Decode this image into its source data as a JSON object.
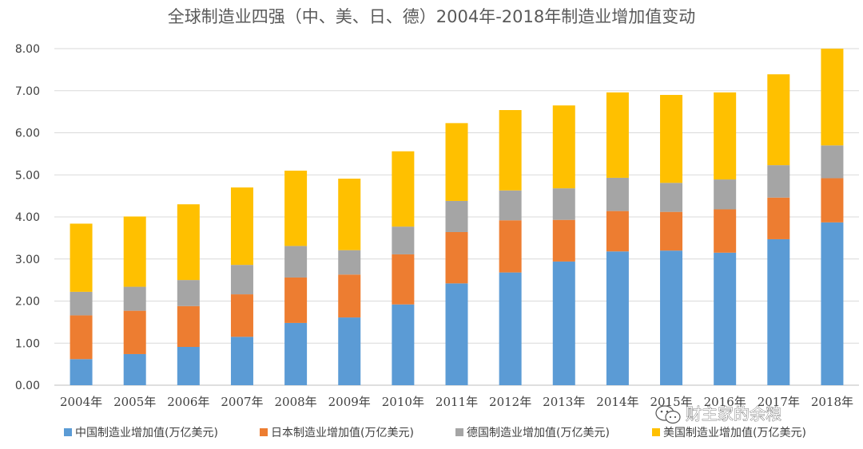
{
  "chart_data": {
    "type": "bar",
    "stacked": true,
    "title": "全球制造业四强（中、美、日、德）2004年-2018年制造业增加值变动",
    "xlabel": "",
    "ylabel": "",
    "ylim": [
      0,
      8
    ],
    "yticks": [
      "0.00",
      "1.00",
      "2.00",
      "3.00",
      "4.00",
      "5.00",
      "6.00",
      "7.00",
      "8.00"
    ],
    "grid": true,
    "legend_position": "bottom",
    "categories": [
      "2004年",
      "2005年",
      "2006年",
      "2007年",
      "2008年",
      "2009年",
      "2010年",
      "2011年",
      "2012年",
      "2013年",
      "2014年",
      "2015年",
      "2016年",
      "2017年",
      "2018年"
    ],
    "series": [
      {
        "name": "中国制造业增加值(万亿美元)",
        "color": "#5b9bd5",
        "values": [
          0.62,
          0.74,
          0.91,
          1.15,
          1.48,
          1.61,
          1.92,
          2.42,
          2.68,
          2.94,
          3.18,
          3.2,
          3.15,
          3.47,
          3.87
        ]
      },
      {
        "name": "日本制造业增加值(万亿美元)",
        "color": "#ed7d31",
        "values": [
          1.04,
          1.03,
          0.97,
          1.01,
          1.08,
          1.02,
          1.19,
          1.22,
          1.24,
          0.99,
          0.96,
          0.92,
          1.03,
          0.99,
          1.05
        ]
      },
      {
        "name": "德国制造业增加值(万亿美元)",
        "color": "#a5a5a5",
        "values": [
          0.56,
          0.57,
          0.62,
          0.7,
          0.75,
          0.58,
          0.66,
          0.74,
          0.71,
          0.75,
          0.79,
          0.69,
          0.71,
          0.77,
          0.78
        ]
      },
      {
        "name": "美国制造业增加值(万亿美元)",
        "color": "#ffc000",
        "values": [
          1.62,
          1.67,
          1.8,
          1.84,
          1.79,
          1.7,
          1.79,
          1.85,
          1.91,
          1.97,
          2.03,
          2.09,
          2.07,
          2.16,
          2.3
        ]
      }
    ]
  },
  "watermark": {
    "text": "财主家的余粮",
    "icon": "wechat-icon"
  }
}
